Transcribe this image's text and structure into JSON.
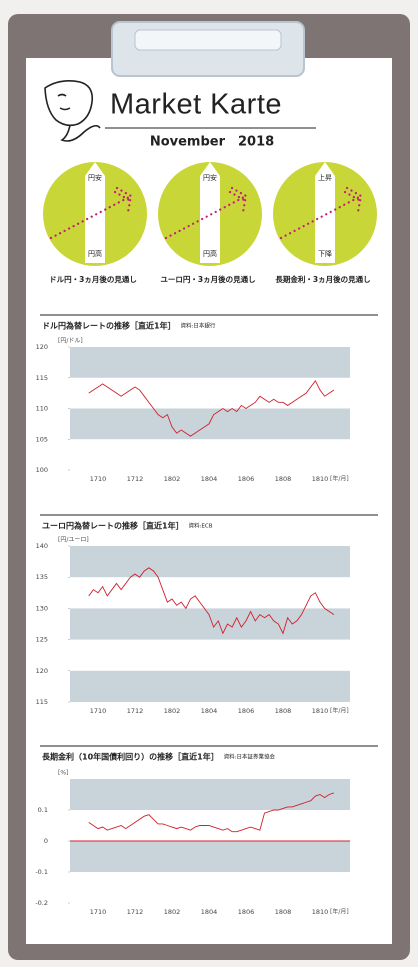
{
  "header": {
    "title": "Market Karte",
    "date": "November　2018"
  },
  "outlook": [
    {
      "top": "円安",
      "bottom": "円高",
      "caption": "ドル円・3ヵ月後の見通し"
    },
    {
      "top": "円安",
      "bottom": "円高",
      "caption": "ユーロ円・3ヵ月後の見通し"
    },
    {
      "top": "上昇",
      "bottom": "下降",
      "caption": "長期金利・3ヵ月後の見通し"
    }
  ],
  "chart_data": [
    {
      "type": "line",
      "title": "ドル円為替レートの推移［直近1年］",
      "source": "資料:日本銀行",
      "y_unit": "[円/ドル]",
      "x_unit": "[年/月]",
      "categories": [
        null,
        null,
        "1710",
        null,
        null,
        null,
        null,
        null,
        null,
        null,
        "1712",
        null,
        null,
        null,
        null,
        null,
        null,
        null,
        "1802",
        null,
        null,
        null,
        null,
        null,
        null,
        null,
        "1804",
        null,
        null,
        null,
        null,
        null,
        null,
        null,
        "1806",
        null,
        null,
        null,
        null,
        null,
        null,
        null,
        "1808",
        null,
        null,
        null,
        null,
        null,
        null,
        null,
        "1810",
        null,
        null,
        null
      ],
      "values": [
        112.5,
        113,
        113.5,
        114,
        113.5,
        113,
        112.5,
        112,
        112.5,
        113,
        113.5,
        113,
        112,
        111,
        110,
        109,
        108.5,
        109,
        107,
        106,
        106.5,
        106,
        105.5,
        106,
        106.5,
        107,
        107.5,
        109,
        109.5,
        110,
        109.5,
        110,
        109.5,
        110.5,
        110,
        110.5,
        111,
        112,
        111.5,
        111,
        111.5,
        111,
        111,
        110.5,
        111,
        111.5,
        112,
        112.5,
        113.5,
        114.5,
        113,
        112,
        112.5,
        113
      ],
      "color": "#d0202e",
      "ylim": [
        100,
        120
      ],
      "yticks": [
        100,
        105,
        110,
        115,
        120
      ],
      "grid": "bands"
    },
    {
      "type": "line",
      "title": "ユーロ円為替レートの推移［直近1年］",
      "source": "資料:ECB",
      "y_unit": "[円/ユーロ]",
      "x_unit": "[年/月]",
      "categories": [
        null,
        null,
        "1710",
        null,
        null,
        null,
        null,
        null,
        null,
        null,
        "1712",
        null,
        null,
        null,
        null,
        null,
        null,
        null,
        "1802",
        null,
        null,
        null,
        null,
        null,
        null,
        null,
        "1804",
        null,
        null,
        null,
        null,
        null,
        null,
        null,
        "1806",
        null,
        null,
        null,
        null,
        null,
        null,
        null,
        "1808",
        null,
        null,
        null,
        null,
        null,
        null,
        null,
        "1810",
        null,
        null,
        null
      ],
      "values": [
        132,
        133,
        132.5,
        133.5,
        132,
        133,
        134,
        133,
        134,
        135,
        135.5,
        135,
        136,
        136.5,
        136,
        135,
        133,
        131,
        131.5,
        130.5,
        131,
        130,
        131.5,
        132,
        131,
        130,
        129,
        127,
        128,
        126,
        127.5,
        127,
        128.5,
        127,
        128,
        129.5,
        128,
        129,
        128.5,
        129,
        128,
        127.5,
        126,
        128.5,
        127.5,
        128,
        129,
        130.5,
        132,
        132.5,
        131,
        130,
        129.5,
        129
      ],
      "color": "#d0202e",
      "ylim": [
        115,
        140
      ],
      "yticks": [
        115,
        120,
        125,
        130,
        135,
        140
      ],
      "grid": "bands"
    },
    {
      "type": "line",
      "title": "長期金利（10年国債利回り）の推移［直近1年］",
      "source": "資料:日本証券業協会",
      "y_unit": "[%]",
      "x_unit": "[年/月]",
      "categories": [
        null,
        null,
        "1710",
        null,
        null,
        null,
        null,
        null,
        null,
        null,
        "1712",
        null,
        null,
        null,
        null,
        null,
        null,
        null,
        "1802",
        null,
        null,
        null,
        null,
        null,
        null,
        null,
        "1804",
        null,
        null,
        null,
        null,
        null,
        null,
        null,
        "1806",
        null,
        null,
        null,
        null,
        null,
        null,
        null,
        "1808",
        null,
        null,
        null,
        null,
        null,
        null,
        null,
        "1810",
        null,
        null,
        null
      ],
      "values": [
        0.06,
        0.05,
        0.04,
        0.045,
        0.035,
        0.04,
        0.045,
        0.05,
        0.04,
        0.05,
        0.06,
        0.07,
        0.08,
        0.085,
        0.07,
        0.055,
        0.055,
        0.05,
        0.045,
        0.04,
        0.045,
        0.04,
        0.035,
        0.045,
        0.05,
        0.05,
        0.05,
        0.045,
        0.04,
        0.035,
        0.04,
        0.03,
        0.03,
        0.035,
        0.04,
        0.045,
        0.04,
        0.035,
        0.09,
        0.095,
        0.1,
        0.1,
        0.105,
        0.11,
        0.11,
        0.115,
        0.12,
        0.125,
        0.13,
        0.145,
        0.15,
        0.14,
        0.15,
        0.155
      ],
      "color": "#d0202e",
      "ylim": [
        -0.2,
        0.2
      ],
      "yticks": [
        -0.2,
        -0.1,
        0,
        0.1
      ],
      "grid": "bands",
      "zero_line": true
    }
  ]
}
